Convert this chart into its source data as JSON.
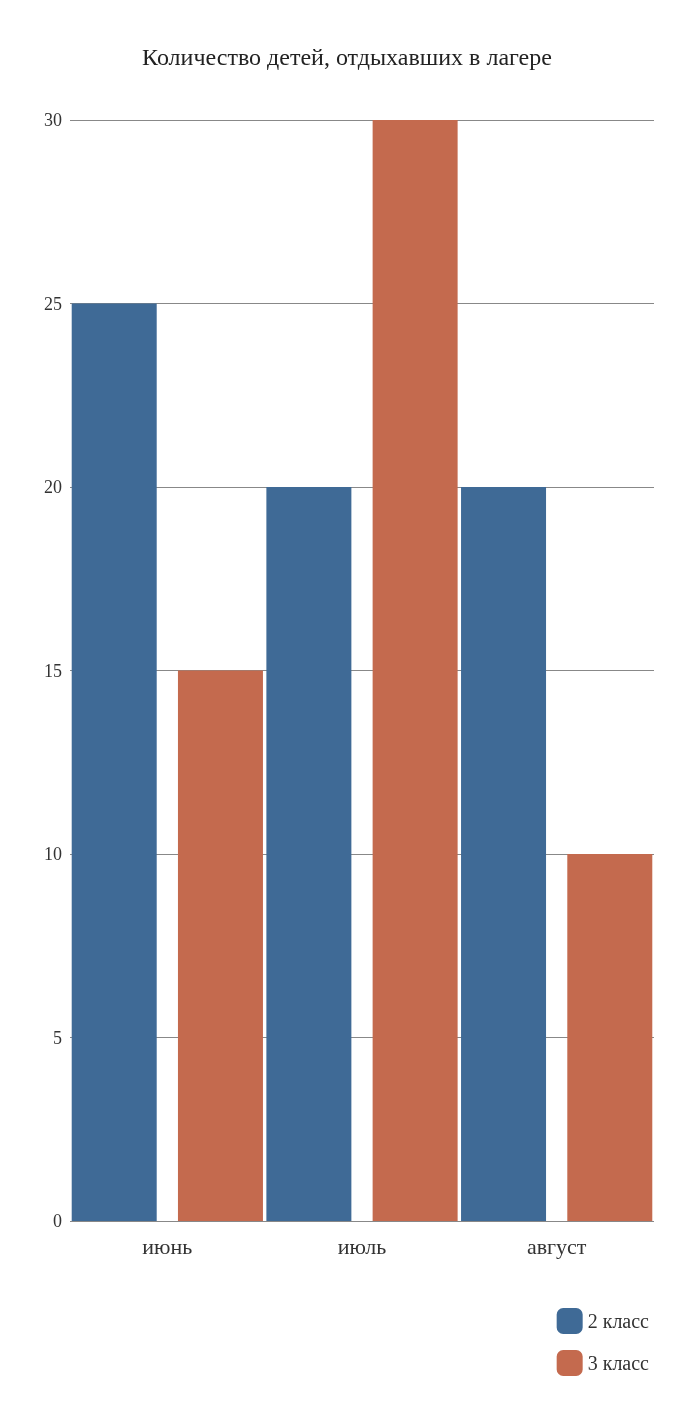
{
  "chart_data": {
    "type": "bar",
    "title": "Количество детей, отдыхавших в лагере",
    "categories": [
      "июнь",
      "июль",
      "август"
    ],
    "series": [
      {
        "name": "2 класс",
        "color": "#3f6a96",
        "values": [
          25,
          20,
          20
        ]
      },
      {
        "name": "3 класс",
        "color": "#c46a4e",
        "values": [
          15,
          30,
          10
        ]
      }
    ],
    "ylim": [
      0,
      30
    ],
    "yticks": [
      0,
      5,
      10,
      15,
      20,
      25,
      30
    ],
    "grid": "y",
    "legend": "bottom right"
  }
}
